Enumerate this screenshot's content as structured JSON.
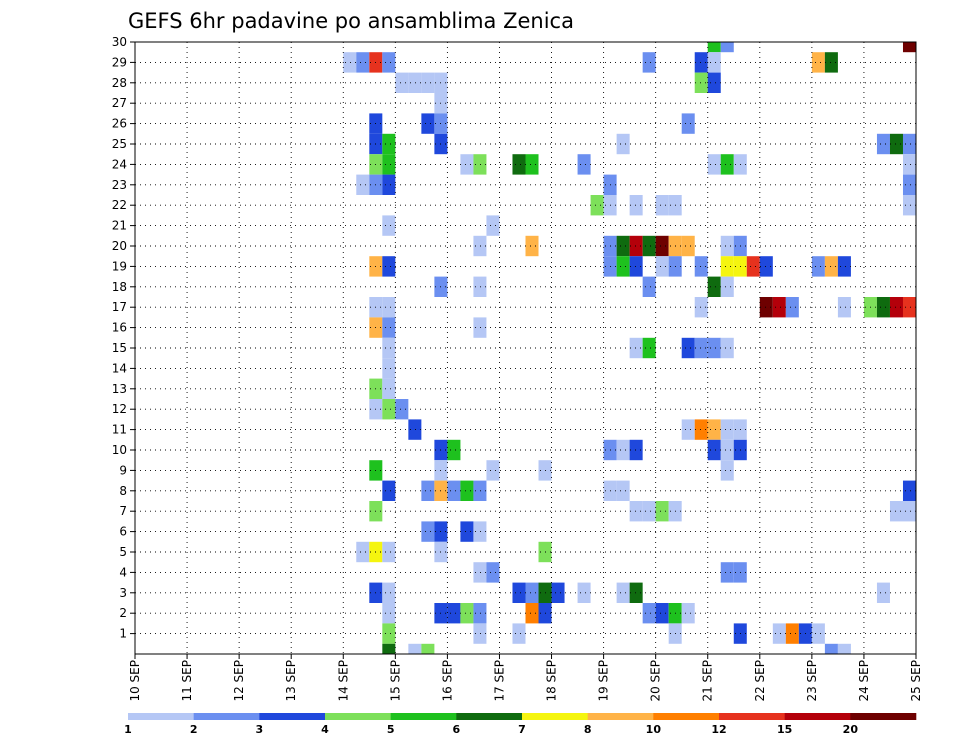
{
  "chart_data": {
    "type": "heatmap",
    "title": "GEFS 6hr padavine po ansamblima Zenica",
    "xlabel": "",
    "ylabel": "",
    "x_ticks": [
      "10 SEP",
      "11 SEP",
      "12 SEP",
      "13 SEP",
      "14 SEP",
      "15 SEP",
      "16 SEP",
      "17 SEP",
      "18 SEP",
      "19 SEP",
      "20 SEP",
      "21 SEP",
      "22 SEP",
      "23 SEP",
      "24 SEP",
      "25 SEP"
    ],
    "x_range_days": [
      10,
      25
    ],
    "y_ticks": [
      "1",
      "2",
      "3",
      "4",
      "5",
      "6",
      "7",
      "8",
      "9",
      "10",
      "11",
      "12",
      "13",
      "14",
      "15",
      "16",
      "17",
      "18",
      "19",
      "20",
      "21",
      "22",
      "23",
      "24",
      "25",
      "26",
      "27",
      "28",
      "29",
      "30"
    ],
    "y_range": [
      0,
      30
    ],
    "grid": true,
    "legend_placement": "bottom",
    "levels": [
      "1",
      "2",
      "3",
      "4",
      "5",
      "6",
      "7",
      "8",
      "10",
      "12",
      "15",
      "20"
    ],
    "colors": [
      "#b5c7f5",
      "#6b8ff0",
      "#1f48dc",
      "#7de05a",
      "#1ec11e",
      "#0f6b0f",
      "#f5f50f",
      "#ffb347",
      "#ff7f00",
      "#e6321e",
      "#b4000a",
      "#6e0000"
    ],
    "cells_note_format": "each cell: [member, day, color_index]; day is the start of the 6h step (0.25 day)",
    "cells": [
      [
        30,
        21.0,
        4
      ],
      [
        30,
        21.25,
        1
      ],
      [
        30,
        24.75,
        11
      ],
      [
        29,
        14.0,
        0
      ],
      [
        29,
        14.25,
        1
      ],
      [
        29,
        14.5,
        9
      ],
      [
        29,
        14.75,
        1
      ],
      [
        29,
        19.75,
        1
      ],
      [
        29,
        20.75,
        2
      ],
      [
        29,
        21.0,
        0
      ],
      [
        29,
        23.0,
        7
      ],
      [
        29,
        23.25,
        5
      ],
      [
        28,
        15.0,
        0
      ],
      [
        28,
        15.25,
        0
      ],
      [
        28,
        15.5,
        0
      ],
      [
        28,
        15.75,
        0
      ],
      [
        28,
        20.75,
        3
      ],
      [
        28,
        21.0,
        2
      ],
      [
        27,
        15.75,
        0
      ],
      [
        26,
        14.5,
        2
      ],
      [
        26,
        15.5,
        2
      ],
      [
        26,
        15.75,
        1
      ],
      [
        26,
        20.5,
        1
      ],
      [
        25,
        14.5,
        2
      ],
      [
        25,
        14.75,
        4
      ],
      [
        25,
        15.75,
        2
      ],
      [
        25,
        19.25,
        0
      ],
      [
        25,
        24.25,
        1
      ],
      [
        25,
        24.5,
        5
      ],
      [
        25,
        24.75,
        1
      ],
      [
        25,
        25.0,
        10
      ],
      [
        25,
        25.25,
        8
      ],
      [
        24,
        14.5,
        3
      ],
      [
        24,
        14.75,
        4
      ],
      [
        24,
        16.25,
        0
      ],
      [
        24,
        16.5,
        3
      ],
      [
        24,
        17.25,
        5
      ],
      [
        24,
        17.5,
        4
      ],
      [
        24,
        18.5,
        1
      ],
      [
        24,
        21.0,
        0
      ],
      [
        24,
        21.25,
        4
      ],
      [
        24,
        21.5,
        0
      ],
      [
        24,
        24.75,
        0
      ],
      [
        23,
        14.25,
        0
      ],
      [
        23,
        14.5,
        1
      ],
      [
        23,
        14.75,
        2
      ],
      [
        23,
        19.0,
        1
      ],
      [
        23,
        24.75,
        1
      ],
      [
        23,
        25.0,
        0
      ],
      [
        22,
        18.75,
        3
      ],
      [
        22,
        19.0,
        0
      ],
      [
        22,
        19.5,
        0
      ],
      [
        22,
        20.0,
        0
      ],
      [
        22,
        20.25,
        0
      ],
      [
        22,
        24.75,
        0
      ],
      [
        22,
        25.0,
        1
      ],
      [
        22,
        25.25,
        0
      ],
      [
        21,
        14.75,
        0
      ],
      [
        21,
        16.75,
        0
      ],
      [
        20,
        16.5,
        0
      ],
      [
        20,
        17.5,
        7
      ],
      [
        20,
        19.0,
        1
      ],
      [
        20,
        19.25,
        5
      ],
      [
        20,
        19.5,
        10
      ],
      [
        20,
        19.75,
        5
      ],
      [
        20,
        20.0,
        11
      ],
      [
        20,
        20.25,
        7
      ],
      [
        20,
        20.5,
        7
      ],
      [
        20,
        21.25,
        0
      ],
      [
        20,
        21.5,
        1
      ],
      [
        19,
        14.5,
        7
      ],
      [
        19,
        14.75,
        2
      ],
      [
        19,
        19.0,
        1
      ],
      [
        19,
        19.25,
        4
      ],
      [
        19,
        19.5,
        2
      ],
      [
        19,
        20.0,
        0
      ],
      [
        19,
        20.25,
        1
      ],
      [
        19,
        20.75,
        1
      ],
      [
        19,
        21.25,
        6
      ],
      [
        19,
        21.5,
        6
      ],
      [
        19,
        21.75,
        9
      ],
      [
        19,
        22.0,
        2
      ],
      [
        19,
        23.0,
        1
      ],
      [
        19,
        23.25,
        7
      ],
      [
        19,
        23.5,
        2
      ],
      [
        18,
        15.75,
        1
      ],
      [
        18,
        16.5,
        0
      ],
      [
        18,
        19.75,
        1
      ],
      [
        18,
        21.0,
        5
      ],
      [
        18,
        21.25,
        0
      ],
      [
        17,
        14.5,
        0
      ],
      [
        17,
        14.75,
        0
      ],
      [
        17,
        20.75,
        0
      ],
      [
        17,
        22.0,
        11
      ],
      [
        17,
        22.25,
        10
      ],
      [
        17,
        22.5,
        1
      ],
      [
        17,
        23.5,
        0
      ],
      [
        17,
        24.0,
        3
      ],
      [
        17,
        24.25,
        5
      ],
      [
        17,
        24.5,
        10
      ],
      [
        17,
        24.75,
        9
      ],
      [
        17,
        25.0,
        4
      ],
      [
        17,
        25.25,
        2
      ],
      [
        16,
        14.5,
        7
      ],
      [
        16,
        14.75,
        1
      ],
      [
        16,
        16.5,
        0
      ],
      [
        15,
        14.75,
        0
      ],
      [
        15,
        19.5,
        0
      ],
      [
        15,
        19.75,
        4
      ],
      [
        15,
        20.5,
        2
      ],
      [
        15,
        20.75,
        1
      ],
      [
        15,
        21.0,
        1
      ],
      [
        15,
        21.25,
        0
      ],
      [
        14,
        14.75,
        0
      ],
      [
        13,
        14.5,
        3
      ],
      [
        13,
        14.75,
        0
      ],
      [
        12,
        14.5,
        0
      ],
      [
        12,
        14.75,
        3
      ],
      [
        12,
        15.0,
        1
      ],
      [
        12,
        25.0,
        0
      ],
      [
        11,
        15.25,
        2
      ],
      [
        11,
        20.5,
        0
      ],
      [
        11,
        20.75,
        8
      ],
      [
        11,
        21.0,
        7
      ],
      [
        11,
        21.25,
        0
      ],
      [
        11,
        21.5,
        0
      ],
      [
        11,
        25.0,
        1
      ],
      [
        10,
        15.75,
        2
      ],
      [
        10,
        16.0,
        4
      ],
      [
        10,
        19.0,
        1
      ],
      [
        10,
        19.25,
        0
      ],
      [
        10,
        19.5,
        2
      ],
      [
        10,
        21.0,
        2
      ],
      [
        10,
        21.25,
        0
      ],
      [
        10,
        21.5,
        2
      ],
      [
        9,
        14.5,
        4
      ],
      [
        9,
        15.75,
        0
      ],
      [
        9,
        16.75,
        0
      ],
      [
        9,
        17.75,
        0
      ],
      [
        9,
        21.25,
        0
      ],
      [
        8,
        14.75,
        2
      ],
      [
        8,
        15.5,
        1
      ],
      [
        8,
        15.75,
        7
      ],
      [
        8,
        16.0,
        1
      ],
      [
        8,
        16.25,
        4
      ],
      [
        8,
        16.5,
        1
      ],
      [
        8,
        19.0,
        0
      ],
      [
        8,
        19.25,
        0
      ],
      [
        8,
        24.75,
        2
      ],
      [
        8,
        25.0,
        4
      ],
      [
        7,
        14.5,
        3
      ],
      [
        7,
        19.5,
        0
      ],
      [
        7,
        19.75,
        0
      ],
      [
        7,
        20.0,
        3
      ],
      [
        7,
        20.25,
        0
      ],
      [
        7,
        24.5,
        0
      ],
      [
        7,
        24.75,
        0
      ],
      [
        7,
        25.0,
        5
      ],
      [
        7,
        25.25,
        1
      ],
      [
        6,
        15.5,
        1
      ],
      [
        6,
        15.75,
        2
      ],
      [
        6,
        16.25,
        2
      ],
      [
        6,
        16.5,
        0
      ],
      [
        5,
        14.25,
        0
      ],
      [
        5,
        14.5,
        6
      ],
      [
        5,
        14.75,
        0
      ],
      [
        5,
        15.75,
        0
      ],
      [
        5,
        17.75,
        3
      ],
      [
        4,
        16.5,
        0
      ],
      [
        4,
        16.75,
        1
      ],
      [
        4,
        21.25,
        1
      ],
      [
        4,
        21.5,
        1
      ],
      [
        3,
        14.5,
        2
      ],
      [
        3,
        14.75,
        0
      ],
      [
        3,
        17.25,
        2
      ],
      [
        3,
        17.5,
        1
      ],
      [
        3,
        17.75,
        5
      ],
      [
        3,
        18.0,
        2
      ],
      [
        3,
        18.5,
        0
      ],
      [
        3,
        19.25,
        0
      ],
      [
        3,
        19.5,
        5
      ],
      [
        3,
        24.25,
        0
      ],
      [
        2,
        14.75,
        0
      ],
      [
        2,
        15.75,
        2
      ],
      [
        2,
        16.0,
        2
      ],
      [
        2,
        16.25,
        3
      ],
      [
        2,
        16.5,
        1
      ],
      [
        2,
        17.5,
        8
      ],
      [
        2,
        17.75,
        2
      ],
      [
        2,
        19.75,
        1
      ],
      [
        2,
        20.0,
        2
      ],
      [
        2,
        20.25,
        4
      ],
      [
        2,
        20.5,
        0
      ],
      [
        1,
        14.75,
        3
      ],
      [
        1,
        16.5,
        0
      ],
      [
        1,
        17.25,
        0
      ],
      [
        1,
        20.25,
        0
      ],
      [
        1,
        21.5,
        2
      ],
      [
        1,
        22.25,
        0
      ],
      [
        1,
        22.5,
        8
      ],
      [
        1,
        22.75,
        2
      ],
      [
        1,
        23.0,
        0
      ],
      [
        0,
        14.75,
        5
      ],
      [
        0,
        15.25,
        0
      ],
      [
        0,
        15.5,
        3
      ],
      [
        0,
        23.25,
        1
      ],
      [
        0,
        23.5,
        0
      ]
    ]
  }
}
